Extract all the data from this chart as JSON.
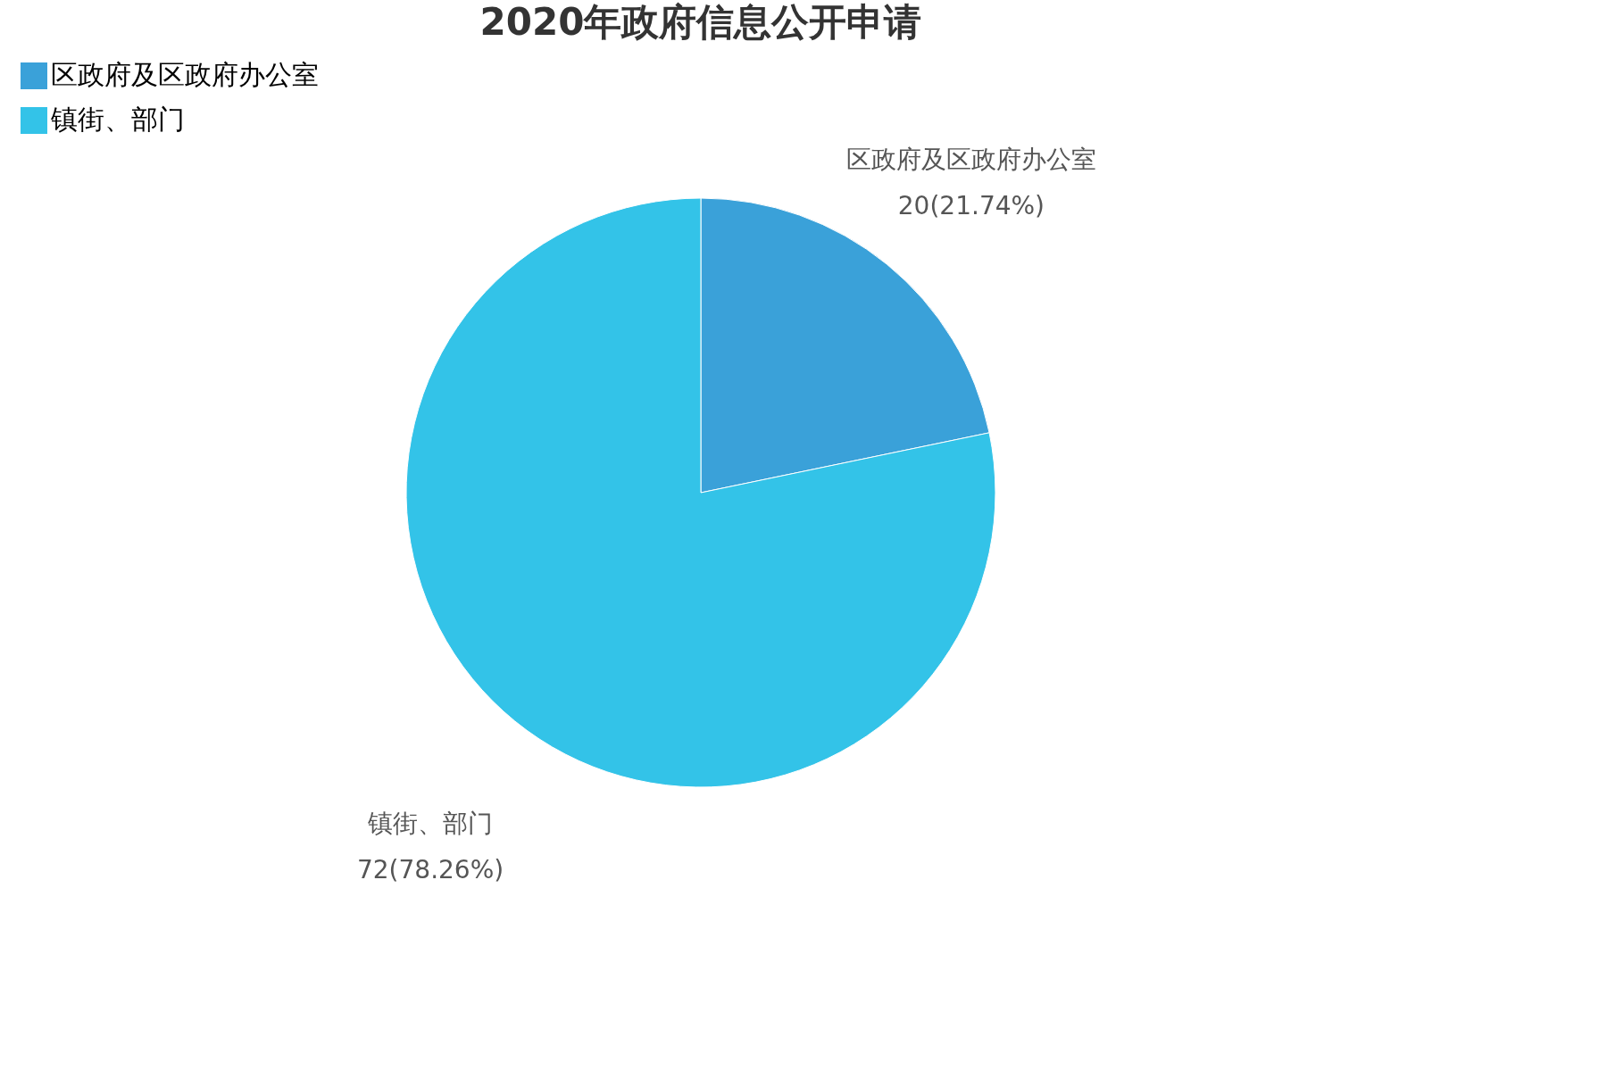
{
  "chart_data": {
    "type": "pie",
    "title": "2020年政府信息公开申请",
    "categories": [
      "区政府及区政府办公室",
      "镇街、部门"
    ],
    "values": [
      20,
      72
    ],
    "value_labels": [
      "20(21.74%)",
      "72(78.26%)"
    ],
    "colors": [
      "#3aa1d9",
      "#33c3e8"
    ],
    "legend": "top left"
  }
}
